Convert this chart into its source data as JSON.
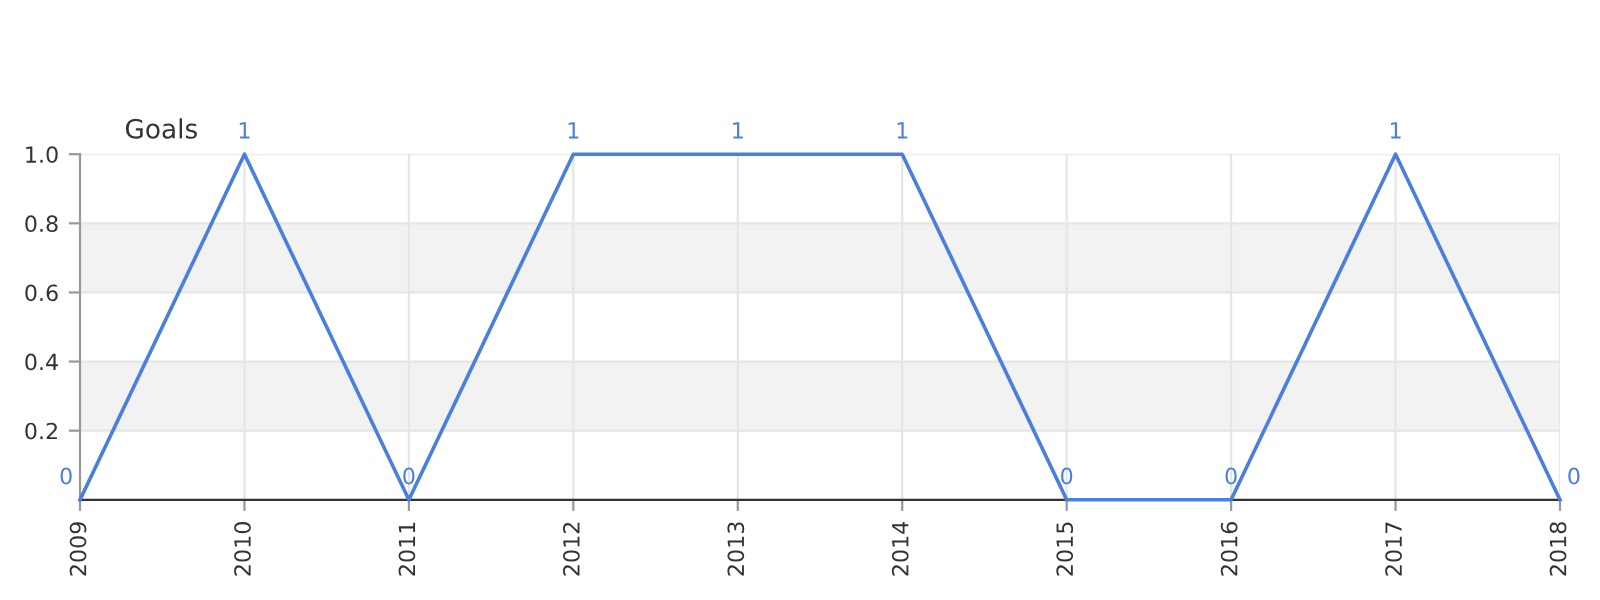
{
  "chart_data": {
    "type": "line",
    "ylabel": "Goals",
    "categories": [
      "2009",
      "2010",
      "2011",
      "2012",
      "2013",
      "2014",
      "2015",
      "2016",
      "2017",
      "2018"
    ],
    "series": [
      {
        "color": "#4a7fe0",
        "values": [
          0,
          1,
          0,
          1,
          1,
          1,
          0,
          0,
          1,
          0
        ]
      }
    ],
    "ylim": [
      0,
      1
    ],
    "yticks": [
      0.2,
      0.4,
      0.6,
      0.8,
      {
        "value": 1,
        "label": "1.0"
      }
    ],
    "bands": [
      {
        "axis": "y",
        "from": 0.2,
        "to": 0.4,
        "color": "#f2f2f2"
      },
      {
        "axis": "y",
        "from": 0.6,
        "to": 0.8,
        "color": "#f2f2f2"
      }
    ],
    "grid": true,
    "data_labels": true,
    "marker": "none",
    "line_style": "solid"
  }
}
